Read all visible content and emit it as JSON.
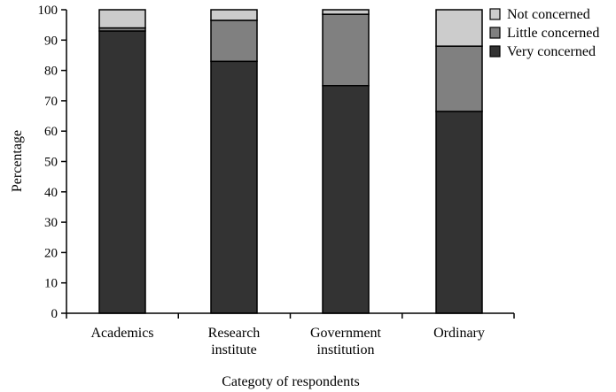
{
  "chart_data": {
    "type": "bar",
    "stacked": true,
    "title": "",
    "xlabel": "Categoty of respondents",
    "ylabel": "Percentage",
    "ylim": [
      0,
      100
    ],
    "yticks": [
      "0",
      "10",
      "20",
      "30",
      "40",
      "50",
      "60",
      "70",
      "80",
      "90",
      "100"
    ],
    "categories": [
      [
        "Academics"
      ],
      [
        "Research",
        "institute"
      ],
      [
        "Government",
        "institution"
      ],
      [
        "Ordinary"
      ]
    ],
    "series": [
      {
        "name": "Very concerned",
        "color": "#333333",
        "values": [
          93,
          83,
          75,
          66.5
        ]
      },
      {
        "name": "Little concerned",
        "color": "#808080",
        "values": [
          1,
          13.5,
          23.5,
          21.5
        ]
      },
      {
        "name": "Not concerned",
        "color": "#cccccc",
        "values": [
          6,
          3.5,
          1.5,
          12
        ]
      }
    ],
    "legend": {
      "position": "top-right",
      "order": [
        "Not concerned",
        "Little concerned",
        "Very concerned"
      ]
    },
    "grid": false
  }
}
